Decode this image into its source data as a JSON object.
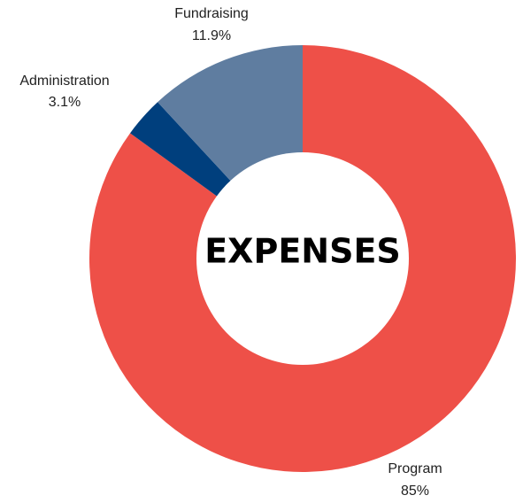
{
  "chart_data": {
    "type": "pie",
    "style": "donut",
    "center_label": "EXPENSES",
    "slices": [
      {
        "name": "Program",
        "value": 85,
        "value_label": "85%",
        "color": "#ee5048"
      },
      {
        "name": "Administration",
        "value": 3.1,
        "value_label": "3.1%",
        "color": "#003f7d"
      },
      {
        "name": "Fundraising",
        "value": 11.9,
        "value_label": "11.9%",
        "color": "#5f7da0"
      }
    ],
    "start_angle": "12 o'clock",
    "direction": "clockwise",
    "labels_position": "outside",
    "legend": "none"
  }
}
